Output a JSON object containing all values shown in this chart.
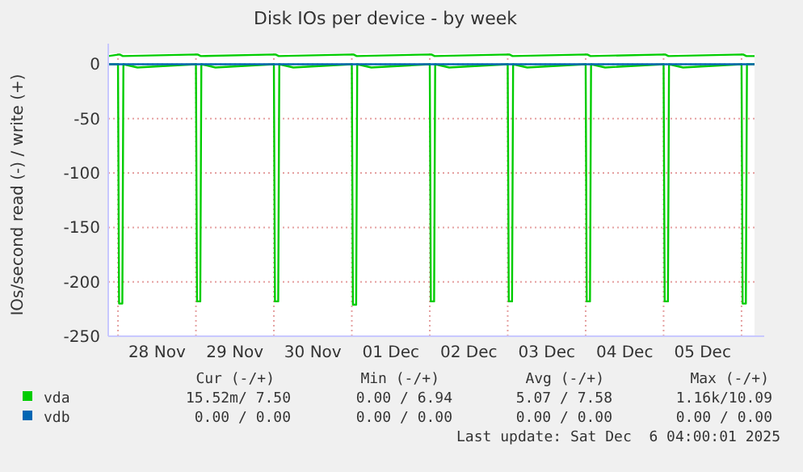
{
  "chart_data": {
    "type": "line",
    "title": "Disk IOs per device - by week",
    "ylabel": "IOs/second read (-) / write (+)",
    "xlim": [
      "2025-11-27T21:00",
      "2025-12-06T04:00"
    ],
    "xticks": [
      {
        "value": "2025-11-28T00:00",
        "label": null
      },
      {
        "value": "2025-11-28T12:00",
        "label": "28 Nov"
      },
      {
        "value": "2025-11-29T00:00",
        "label": null
      },
      {
        "value": "2025-11-29T12:00",
        "label": "29 Nov"
      },
      {
        "value": "2025-11-30T00:00",
        "label": null
      },
      {
        "value": "2025-11-30T12:00",
        "label": "30 Nov"
      },
      {
        "value": "2025-12-01T00:00",
        "label": null
      },
      {
        "value": "2025-12-01T12:00",
        "label": "01 Dec"
      },
      {
        "value": "2025-12-02T00:00",
        "label": null
      },
      {
        "value": "2025-12-02T12:00",
        "label": "02 Dec"
      },
      {
        "value": "2025-12-03T00:00",
        "label": null
      },
      {
        "value": "2025-12-03T12:00",
        "label": "03 Dec"
      },
      {
        "value": "2025-12-04T00:00",
        "label": null
      },
      {
        "value": "2025-12-04T12:00",
        "label": "04 Dec"
      },
      {
        "value": "2025-12-05T00:00",
        "label": null
      },
      {
        "value": "2025-12-05T12:00",
        "label": "05 Dec"
      },
      {
        "value": "2025-12-06T00:00",
        "label": null
      }
    ],
    "ylim": [
      -250,
      10
    ],
    "yticks": [
      0,
      -50,
      -100,
      -150,
      -200,
      -250
    ],
    "grid": true,
    "legend": "bottom",
    "series": [
      {
        "name": "vda",
        "color": "#00cc00",
        "x": [
          "2025-11-27T21:00",
          "2025-11-28T00:00",
          "2025-11-28T00:20",
          "2025-11-28T01:20",
          "2025-11-28T01:40",
          "2025-11-28T06:00",
          "2025-11-29T00:00",
          "2025-11-29T00:20",
          "2025-11-29T01:20",
          "2025-11-29T01:40",
          "2025-11-29T06:00",
          "2025-11-30T00:00",
          "2025-11-30T00:20",
          "2025-11-30T01:20",
          "2025-11-30T01:40",
          "2025-11-30T06:00",
          "2025-12-01T00:00",
          "2025-12-01T00:20",
          "2025-12-01T01:20",
          "2025-12-01T01:40",
          "2025-12-01T06:00",
          "2025-12-02T00:00",
          "2025-12-02T00:20",
          "2025-12-02T01:20",
          "2025-12-02T01:40",
          "2025-12-02T06:00",
          "2025-12-03T00:00",
          "2025-12-03T00:20",
          "2025-12-03T01:20",
          "2025-12-03T01:40",
          "2025-12-03T06:00",
          "2025-12-04T00:00",
          "2025-12-04T00:20",
          "2025-12-04T01:20",
          "2025-12-04T01:40",
          "2025-12-04T06:00",
          "2025-12-05T00:00",
          "2025-12-05T00:20",
          "2025-12-05T01:20",
          "2025-12-05T01:40",
          "2025-12-05T06:00",
          "2025-12-06T00:00",
          "2025-12-06T00:20",
          "2025-12-06T01:20",
          "2025-12-06T01:40",
          "2025-12-06T04:00"
        ],
        "values": [
          0,
          0,
          -220,
          -220,
          0,
          -3,
          0,
          -218,
          -218,
          0,
          -3,
          0,
          -218,
          -218,
          0,
          -3,
          0,
          -221,
          -221,
          0,
          -3,
          0,
          -218,
          -218,
          0,
          -3,
          0,
          -218,
          -218,
          0,
          -3,
          0,
          -218,
          -218,
          0,
          -3,
          0,
          -218,
          -218,
          0,
          -3,
          0,
          -220,
          -220,
          0,
          0
        ]
      },
      {
        "color": "#00cc00",
        "x": [
          "2025-11-27T21:00",
          "2025-11-28T00:30",
          "2025-11-28T01:30",
          "2025-11-29T00:30",
          "2025-11-29T01:30",
          "2025-11-30T00:30",
          "2025-11-30T01:30",
          "2025-12-01T00:30",
          "2025-12-01T01:30",
          "2025-12-02T00:30",
          "2025-12-02T01:30",
          "2025-12-03T00:30",
          "2025-12-03T01:30",
          "2025-12-04T00:30",
          "2025-12-04T01:30",
          "2025-12-05T00:30",
          "2025-12-05T01:30",
          "2025-12-06T00:30",
          "2025-12-06T01:30",
          "2025-12-06T04:00"
        ],
        "values": [
          7.5,
          9,
          7.5,
          9,
          7.5,
          9,
          7.5,
          9,
          7.5,
          9,
          7.5,
          9,
          7.5,
          9,
          7.5,
          9,
          7.5,
          9,
          7.5,
          7.5
        ]
      },
      {
        "name": "vdb",
        "color": "#0066b3",
        "x": [
          "2025-11-27T21:00",
          "2025-12-06T04:00"
        ],
        "values": [
          0,
          0
        ]
      }
    ],
    "annotations": [
      "Cur (-/+)",
      "Min (-/+)",
      "Avg (-/+)",
      "Max (-/+)",
      "15.52m/ 7.50",
      "0.00 / 6.94",
      "5.07 / 7.58",
      "1.16k/10.09",
      "0.00 / 0.00",
      "0.00 / 0.00",
      "0.00 / 0.00",
      "0.00 / 0.00",
      "Last update: Sat Dec  6 04:00:01 2025"
    ]
  }
}
